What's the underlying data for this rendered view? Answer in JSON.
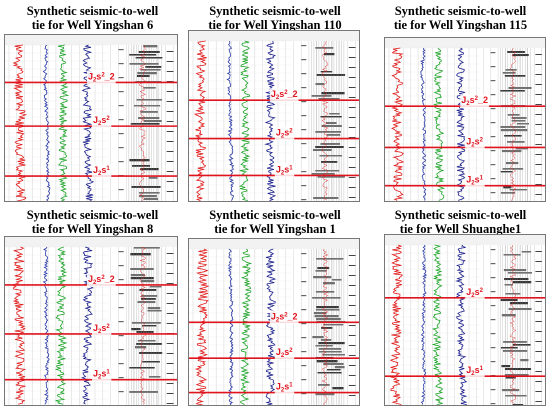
{
  "panels": [
    {
      "id": "yingshan6",
      "title_line1": "Synthetic seismic-to-well",
      "title_line2": "tie for Well Yingshan 6",
      "horizons": [
        {
          "base": "J",
          "sub": "2",
          "mid": "s",
          "sup": "2",
          "suffix": "_2",
          "depth": 0.24
        },
        {
          "base": "J",
          "sub": "2",
          "mid": "s",
          "sup": "2",
          "suffix": "",
          "depth": 0.52
        },
        {
          "base": "J",
          "sub": "2",
          "mid": "s",
          "sup": "1",
          "suffix": "",
          "depth": 0.84
        }
      ]
    },
    {
      "id": "yingshan110",
      "title_line1": "Synthetic seismic-to-well",
      "title_line2": "tie for Well Yingshan 110",
      "horizons": [
        {
          "base": "J",
          "sub": "2",
          "mid": "s",
          "sup": "2",
          "suffix": "_2",
          "depth": 0.37
        },
        {
          "base": "J",
          "sub": "2",
          "mid": "s",
          "sup": "2",
          "suffix": "",
          "depth": 0.61
        },
        {
          "base": "J",
          "sub": "2",
          "mid": "s",
          "sup": "1",
          "suffix": "",
          "depth": 0.84
        }
      ]
    },
    {
      "id": "yingshan115",
      "title_line1": "Synthetic seismic-to-well",
      "title_line2": "tie for Well Yingshan 115",
      "horizons": [
        {
          "base": "J",
          "sub": "2",
          "mid": "s",
          "sup": "2",
          "suffix": "_2",
          "depth": 0.38
        },
        {
          "base": "J",
          "sub": "2",
          "mid": "s",
          "sup": "2",
          "suffix": "",
          "depth": 0.65
        },
        {
          "base": "J",
          "sub": "2",
          "mid": "s",
          "sup": "1",
          "suffix": "",
          "depth": 0.9
        }
      ]
    },
    {
      "id": "yingshan8",
      "title_line1": "Synthetic seismic-to-well",
      "title_line2": "tie for Well Yingshan 8",
      "horizons": [
        {
          "base": "J",
          "sub": "2",
          "mid": "s",
          "sup": "2",
          "suffix": "_2",
          "depth": 0.24
        },
        {
          "base": "J",
          "sub": "2",
          "mid": "s",
          "sup": "2",
          "suffix": "",
          "depth": 0.55
        },
        {
          "base": "J",
          "sub": "2",
          "mid": "s",
          "sup": "1",
          "suffix": "",
          "depth": 0.84
        }
      ]
    },
    {
      "id": "yingshan1",
      "title_line1": "Synthetic seismic-to-well",
      "title_line2": "tie for Well Yingshan 1",
      "horizons": [
        {
          "base": "J",
          "sub": "2",
          "mid": "s",
          "sup": "2",
          "suffix": "_2",
          "depth": 0.47
        },
        {
          "base": "J",
          "sub": "2",
          "mid": "s",
          "sup": "2",
          "suffix": "",
          "depth": 0.7
        },
        {
          "base": "J",
          "sub": "2",
          "mid": "s",
          "sup": "1",
          "suffix": "",
          "depth": 0.92
        }
      ]
    },
    {
      "id": "shuanghe1",
      "title_line1": "Synthetic seismic-to-well",
      "title_line2": "tie for Well Shuanghe1",
      "horizons": [
        {
          "base": "J",
          "sub": "2",
          "mid": "s",
          "sup": "2",
          "suffix": "",
          "depth": 0.33
        },
        {
          "base": "J",
          "sub": "2",
          "mid": "s",
          "sup": "1",
          "suffix": "",
          "depth": 0.82
        }
      ]
    }
  ],
  "colors": {
    "horizon_line": "#e0141e",
    "curve_red": "#e21b1b",
    "curve_blue": "#2a3aa8",
    "curve_green": "#1fa52a",
    "curve_navy": "#1b1f8c",
    "grid": "#c8c8c8",
    "seismic_dark": "#111111"
  }
}
